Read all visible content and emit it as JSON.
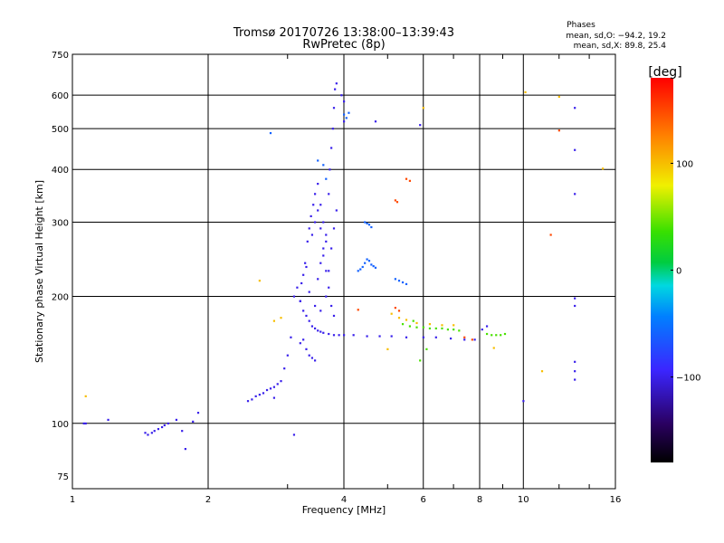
{
  "chart_data": {
    "type": "scatter",
    "title": "Tromsø 20170726 13:38:00–13:39:43",
    "subtitle": "RwPretec (8p)",
    "stats_box": {
      "heading": "Phases",
      "line_o": "mean, sd,O: −94.2, 19.2",
      "line_x": "mean, sd,X:  89.8, 25.4"
    },
    "xlabel": "Frequency [MHz]",
    "ylabel": "Stationary phase Virtual Height [km]",
    "x_scale": "log",
    "y_scale": "log",
    "xlim": [
      1,
      16
    ],
    "ylim": [
      70,
      750
    ],
    "x_ticks": [
      1,
      2,
      4,
      6,
      8,
      10,
      16
    ],
    "x_tick_labels": [
      "1",
      "2",
      "4",
      "6",
      "8",
      "10",
      "16"
    ],
    "y_ticks": [
      75,
      100,
      200,
      300,
      400,
      500,
      600,
      750
    ],
    "y_tick_labels": [
      "75",
      "100",
      "200",
      "300",
      "400",
      "500",
      "600",
      "750"
    ],
    "grid": true,
    "colorbar": {
      "label": "[deg]",
      "range": [
        -180,
        180
      ],
      "ticks": [
        100,
        0,
        -100
      ],
      "tick_labels": [
        "100",
        "0",
        "−100"
      ]
    },
    "series": [
      {
        "color_deg": -100,
        "points": [
          [
            1.06,
            100
          ],
          [
            1.07,
            100
          ],
          [
            1.2,
            102
          ],
          [
            1.45,
            95
          ],
          [
            1.47,
            94
          ],
          [
            1.5,
            95
          ],
          [
            1.52,
            96
          ],
          [
            1.55,
            97
          ],
          [
            1.58,
            98
          ],
          [
            1.6,
            99
          ],
          [
            1.63,
            100
          ],
          [
            1.7,
            102
          ],
          [
            1.75,
            96
          ],
          [
            1.78,
            87
          ],
          [
            1.85,
            101
          ],
          [
            1.9,
            106
          ],
          [
            2.45,
            113
          ],
          [
            2.5,
            114
          ],
          [
            2.55,
            116
          ],
          [
            2.6,
            117
          ],
          [
            2.65,
            118
          ],
          [
            2.7,
            120
          ],
          [
            2.75,
            121
          ],
          [
            2.8,
            122
          ],
          [
            2.85,
            124
          ],
          [
            2.9,
            126
          ],
          [
            2.95,
            135
          ],
          [
            3.0,
            145
          ],
          [
            3.05,
            160
          ],
          [
            3.1,
            200
          ],
          [
            3.15,
            210
          ],
          [
            3.2,
            195
          ],
          [
            3.25,
            185
          ],
          [
            3.3,
            180
          ],
          [
            3.35,
            175
          ],
          [
            3.4,
            170
          ],
          [
            3.45,
            168
          ],
          [
            3.5,
            166
          ],
          [
            3.55,
            165
          ],
          [
            3.6,
            164
          ],
          [
            3.7,
            163
          ],
          [
            3.8,
            162
          ],
          [
            3.9,
            162
          ],
          [
            4.0,
            162
          ],
          [
            4.2,
            162
          ],
          [
            4.5,
            161
          ],
          [
            4.8,
            161
          ],
          [
            5.1,
            161
          ],
          [
            5.5,
            160
          ],
          [
            6.0,
            160
          ],
          [
            6.4,
            160
          ],
          [
            6.9,
            159
          ],
          [
            7.4,
            158
          ],
          [
            7.8,
            158
          ],
          [
            3.3,
            150
          ],
          [
            3.35,
            145
          ],
          [
            3.4,
            143
          ],
          [
            3.45,
            141
          ],
          [
            3.2,
            155
          ],
          [
            3.25,
            158
          ],
          [
            3.2,
            195
          ],
          [
            3.22,
            215
          ],
          [
            3.28,
            240
          ],
          [
            3.32,
            270
          ],
          [
            3.35,
            290
          ],
          [
            3.38,
            310
          ],
          [
            3.42,
            330
          ],
          [
            3.45,
            350
          ],
          [
            3.5,
            370
          ],
          [
            3.55,
            330
          ],
          [
            3.6,
            300
          ],
          [
            3.65,
            270
          ],
          [
            3.7,
            350
          ],
          [
            3.72,
            400
          ],
          [
            3.75,
            450
          ],
          [
            3.78,
            500
          ],
          [
            3.8,
            560
          ],
          [
            3.82,
            620
          ],
          [
            3.85,
            640
          ],
          [
            3.95,
            600
          ],
          [
            4.0,
            580
          ],
          [
            3.5,
            220
          ],
          [
            3.55,
            240
          ],
          [
            3.6,
            260
          ],
          [
            3.65,
            280
          ],
          [
            3.4,
            280
          ],
          [
            3.45,
            300
          ],
          [
            3.5,
            320
          ],
          [
            3.55,
            290
          ],
          [
            3.6,
            250
          ],
          [
            3.65,
            230
          ],
          [
            3.7,
            210
          ],
          [
            3.75,
            190
          ],
          [
            3.8,
            180
          ],
          [
            3.3,
            235
          ],
          [
            3.25,
            225
          ],
          [
            3.35,
            205
          ],
          [
            3.45,
            190
          ],
          [
            3.55,
            185
          ],
          [
            3.65,
            200
          ],
          [
            3.7,
            230
          ],
          [
            3.75,
            260
          ],
          [
            3.8,
            290
          ],
          [
            3.85,
            320
          ],
          [
            4.0,
            520
          ],
          [
            5.9,
            510
          ],
          [
            4.7,
            520
          ],
          [
            2.8,
            115
          ],
          [
            3.1,
            94
          ],
          [
            10.0,
            113
          ],
          [
            13.0,
            560
          ],
          [
            13.0,
            350
          ],
          [
            13.0,
            198
          ],
          [
            13.0,
            190
          ],
          [
            13.0,
            140
          ],
          [
            13.0,
            133
          ],
          [
            13.0,
            127
          ],
          [
            13.0,
            445
          ],
          [
            8.3,
            170
          ],
          [
            8.1,
            167
          ]
        ]
      },
      {
        "color_deg": -60,
        "points": [
          [
            4.3,
            230
          ],
          [
            4.35,
            232
          ],
          [
            4.4,
            235
          ],
          [
            4.45,
            240
          ],
          [
            4.5,
            245
          ],
          [
            4.55,
            243
          ],
          [
            4.6,
            238
          ],
          [
            4.65,
            236
          ],
          [
            4.7,
            234
          ],
          [
            4.45,
            300
          ],
          [
            4.5,
            298
          ],
          [
            4.55,
            296
          ],
          [
            4.6,
            292
          ],
          [
            5.2,
            220
          ],
          [
            5.3,
            218
          ],
          [
            5.4,
            216
          ],
          [
            5.5,
            214
          ],
          [
            4.0,
            540
          ],
          [
            4.05,
            530
          ],
          [
            4.1,
            545
          ],
          [
            2.75,
            488
          ],
          [
            3.5,
            420
          ],
          [
            3.6,
            410
          ],
          [
            3.65,
            380
          ]
        ]
      },
      {
        "color_deg": 40,
        "points": [
          [
            5.4,
            172
          ],
          [
            5.6,
            170
          ],
          [
            5.8,
            169
          ],
          [
            6.0,
            169
          ],
          [
            6.2,
            168
          ],
          [
            6.4,
            168
          ],
          [
            6.6,
            168
          ],
          [
            6.8,
            167
          ],
          [
            7.0,
            167
          ],
          [
            7.2,
            166
          ],
          [
            8.3,
            163
          ],
          [
            8.5,
            162
          ],
          [
            8.7,
            162
          ],
          [
            8.9,
            162
          ],
          [
            9.1,
            163
          ],
          [
            5.7,
            175
          ],
          [
            6.1,
            150
          ],
          [
            5.9,
            141
          ]
        ]
      },
      {
        "color_deg": 100,
        "points": [
          [
            5.1,
            182
          ],
          [
            5.3,
            178
          ],
          [
            5.5,
            176
          ],
          [
            5.8,
            173
          ],
          [
            6.2,
            172
          ],
          [
            6.6,
            171
          ],
          [
            7.0,
            171
          ],
          [
            2.8,
            175
          ],
          [
            2.9,
            178
          ],
          [
            2.6,
            218
          ],
          [
            1.07,
            116
          ],
          [
            8.6,
            151
          ],
          [
            5.0,
            150
          ],
          [
            6.0,
            560
          ],
          [
            11.0,
            133
          ],
          [
            10.1,
            610
          ],
          [
            12.0,
            595
          ],
          [
            15.0,
            402
          ]
        ]
      },
      {
        "color_deg": 150,
        "points": [
          [
            5.5,
            380
          ],
          [
            5.6,
            376
          ],
          [
            5.2,
            338
          ],
          [
            5.25,
            335
          ],
          [
            4.3,
            186
          ],
          [
            5.2,
            188
          ],
          [
            5.3,
            185
          ],
          [
            7.4,
            160
          ],
          [
            7.7,
            158
          ],
          [
            11.5,
            280
          ],
          [
            12.0,
            495
          ]
        ]
      }
    ]
  }
}
